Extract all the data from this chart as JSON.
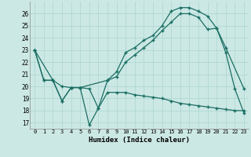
{
  "xlabel": "Humidex (Indice chaleur)",
  "bg_color": "#cce8e4",
  "grid_color": "#b0d8d4",
  "line_color": "#1a6e64",
  "xlim": [
    -0.5,
    23.5
  ],
  "ylim": [
    16.5,
    27.0
  ],
  "xticks": [
    0,
    1,
    2,
    3,
    4,
    5,
    6,
    7,
    8,
    9,
    10,
    11,
    12,
    13,
    14,
    15,
    16,
    17,
    18,
    19,
    20,
    21,
    22,
    23
  ],
  "yticks": [
    17,
    18,
    19,
    20,
    21,
    22,
    23,
    24,
    25,
    26
  ],
  "line1_x": [
    0,
    1,
    2,
    3,
    4,
    5,
    6,
    7,
    8,
    9,
    10,
    11,
    12,
    13,
    14,
    15,
    16,
    17,
    18,
    19,
    20,
    21,
    22,
    23
  ],
  "line1_y": [
    23.0,
    20.5,
    20.5,
    18.8,
    19.9,
    19.9,
    19.8,
    18.2,
    19.5,
    19.5,
    19.5,
    19.3,
    19.2,
    19.1,
    19.0,
    18.8,
    18.6,
    18.5,
    18.4,
    18.3,
    18.2,
    18.1,
    18.0,
    18.0
  ],
  "line2_x": [
    0,
    1,
    2,
    3,
    4,
    5,
    6,
    7,
    8,
    9,
    10,
    11,
    12,
    13,
    14,
    15,
    16,
    17,
    18,
    19,
    20,
    21,
    22,
    23
  ],
  "line2_y": [
    23.0,
    20.5,
    20.5,
    18.8,
    19.9,
    19.9,
    16.8,
    18.2,
    20.5,
    21.2,
    22.8,
    23.2,
    23.8,
    24.2,
    25.0,
    26.2,
    26.5,
    26.5,
    26.2,
    25.8,
    24.8,
    22.8,
    19.8,
    17.8
  ],
  "line3_x": [
    0,
    2,
    3,
    4,
    5,
    8,
    9,
    10,
    11,
    12,
    13,
    14,
    15,
    16,
    17,
    18,
    19,
    20,
    21,
    23
  ],
  "line3_y": [
    23.0,
    20.5,
    20.0,
    19.9,
    19.9,
    20.5,
    20.8,
    22.0,
    22.6,
    23.2,
    23.8,
    24.6,
    25.3,
    26.0,
    26.0,
    25.7,
    24.7,
    24.8,
    23.2,
    19.8
  ]
}
